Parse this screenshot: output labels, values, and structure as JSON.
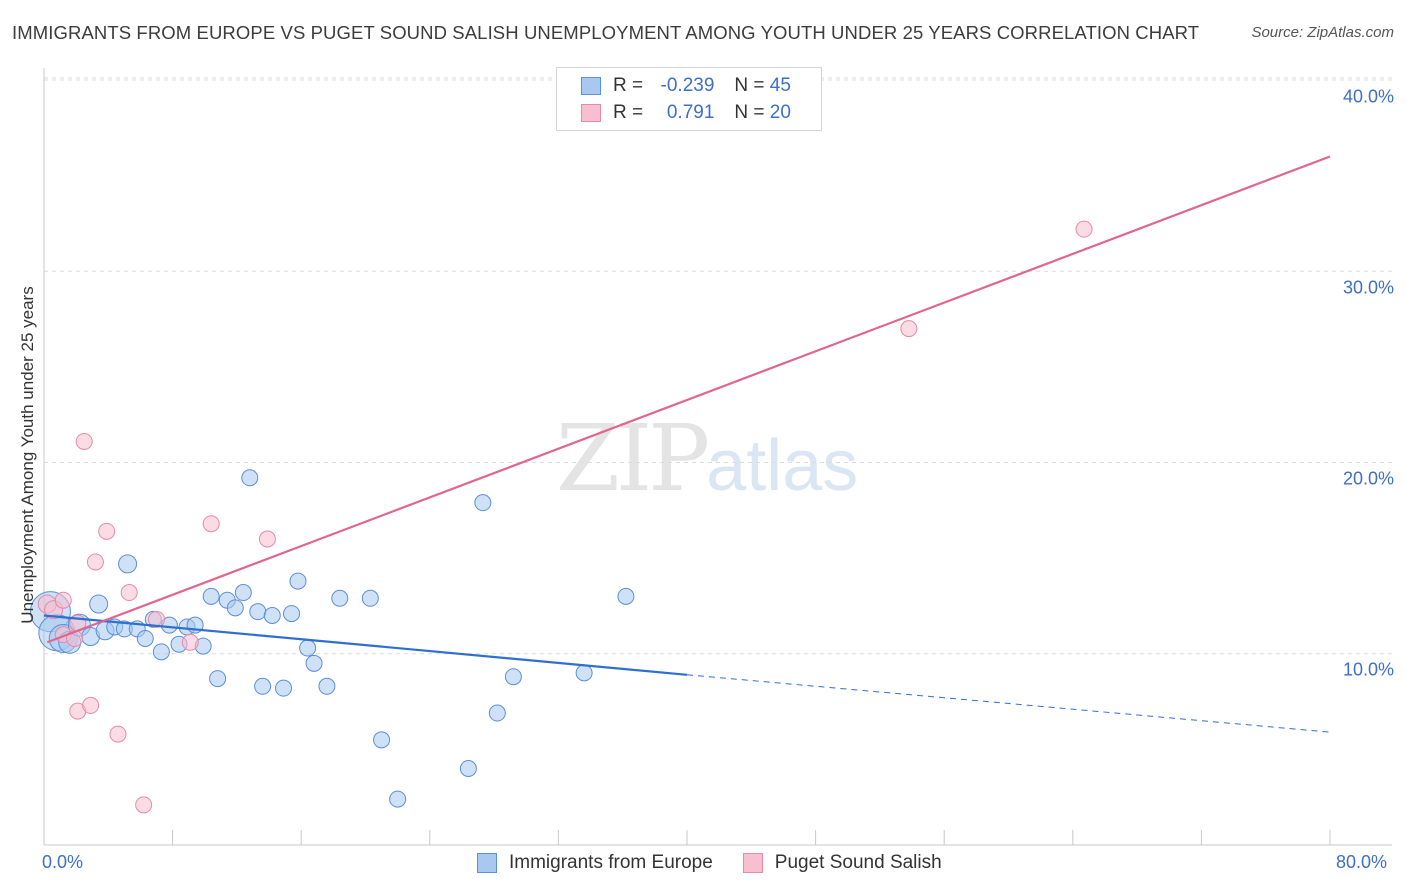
{
  "title": "IMMIGRANTS FROM EUROPE VS PUGET SOUND SALISH UNEMPLOYMENT AMONG YOUTH UNDER 25 YEARS CORRELATION CHART",
  "source": "Source: ZipAtlas.com",
  "watermark": {
    "zip": "ZIP",
    "atlas": "atlas"
  },
  "chart_data": {
    "type": "scatter",
    "title": "IMMIGRANTS FROM EUROPE VS PUGET SOUND SALISH UNEMPLOYMENT AMONG YOUTH UNDER 25 YEARS CORRELATION CHART",
    "xlabel": "",
    "ylabel": "Unemployment Among Youth under 25 years",
    "xlim": [
      0,
      80
    ],
    "ylim": [
      0,
      40
    ],
    "x_tick_labels": [
      "0.0%",
      "80.0%"
    ],
    "y_ticks": [
      10,
      20,
      30,
      40
    ],
    "y_tick_labels": [
      "10.0%",
      "20.0%",
      "30.0%",
      "40.0%"
    ],
    "grid": true,
    "legend": [
      {
        "name": "Immigrants from Europe",
        "r_label": "R =",
        "r": "-0.239",
        "n_label": "N =",
        "n": "45",
        "color": "#a8c8f0",
        "edge": "#5b8fd6"
      },
      {
        "name": "Puget Sound Salish",
        "r_label": "R =",
        "r": "0.791",
        "n_label": "N =",
        "n": "20",
        "color": "#f8bfd0",
        "edge": "#e889a8"
      }
    ],
    "series": [
      {
        "name": "Immigrants from Europe",
        "color": "#a8c8f0",
        "edge": "#5b8fd6",
        "line_color": "#2e6fd1",
        "trend": {
          "x0": 0,
          "y0": 12.0,
          "x1": 40,
          "y1": 8.9,
          "dash_to_x": 80,
          "dash_to_y": 5.9
        },
        "points": [
          {
            "x": 0.4,
            "y": 12.2,
            "s": 20
          },
          {
            "x": 0.8,
            "y": 11.1,
            "s": 18
          },
          {
            "x": 1.2,
            "y": 10.8,
            "s": 14
          },
          {
            "x": 1.6,
            "y": 10.6,
            "s": 11
          },
          {
            "x": 2.2,
            "y": 11.5,
            "s": 11
          },
          {
            "x": 2.9,
            "y": 10.9,
            "s": 9
          },
          {
            "x": 3.4,
            "y": 12.6,
            "s": 9
          },
          {
            "x": 3.8,
            "y": 11.2,
            "s": 9
          },
          {
            "x": 4.4,
            "y": 11.4,
            "s": 8
          },
          {
            "x": 5.0,
            "y": 11.3,
            "s": 8
          },
          {
            "x": 5.2,
            "y": 14.7,
            "s": 9
          },
          {
            "x": 5.8,
            "y": 11.3,
            "s": 8
          },
          {
            "x": 6.3,
            "y": 10.8,
            "s": 8
          },
          {
            "x": 6.8,
            "y": 11.8,
            "s": 8
          },
          {
            "x": 7.3,
            "y": 10.1,
            "s": 8
          },
          {
            "x": 7.8,
            "y": 11.5,
            "s": 8
          },
          {
            "x": 8.4,
            "y": 10.5,
            "s": 8
          },
          {
            "x": 8.9,
            "y": 11.4,
            "s": 8
          },
          {
            "x": 9.4,
            "y": 11.5,
            "s": 8
          },
          {
            "x": 9.9,
            "y": 10.4,
            "s": 8
          },
          {
            "x": 10.4,
            "y": 13.0,
            "s": 8
          },
          {
            "x": 10.8,
            "y": 8.7,
            "s": 8
          },
          {
            "x": 11.4,
            "y": 12.8,
            "s": 8
          },
          {
            "x": 11.9,
            "y": 12.4,
            "s": 8
          },
          {
            "x": 12.4,
            "y": 13.2,
            "s": 8
          },
          {
            "x": 12.8,
            "y": 19.2,
            "s": 8
          },
          {
            "x": 13.3,
            "y": 12.2,
            "s": 8
          },
          {
            "x": 13.6,
            "y": 8.3,
            "s": 8
          },
          {
            "x": 14.2,
            "y": 12.0,
            "s": 8
          },
          {
            "x": 14.9,
            "y": 8.2,
            "s": 8
          },
          {
            "x": 15.4,
            "y": 12.1,
            "s": 8
          },
          {
            "x": 15.8,
            "y": 13.8,
            "s": 8
          },
          {
            "x": 16.4,
            "y": 10.3,
            "s": 8
          },
          {
            "x": 16.8,
            "y": 9.5,
            "s": 8
          },
          {
            "x": 17.6,
            "y": 8.3,
            "s": 8
          },
          {
            "x": 18.4,
            "y": 12.9,
            "s": 8
          },
          {
            "x": 20.3,
            "y": 12.9,
            "s": 8
          },
          {
            "x": 21.0,
            "y": 5.5,
            "s": 8
          },
          {
            "x": 22.0,
            "y": 2.4,
            "s": 8
          },
          {
            "x": 26.4,
            "y": 4.0,
            "s": 8
          },
          {
            "x": 27.3,
            "y": 17.9,
            "s": 8
          },
          {
            "x": 28.2,
            "y": 6.9,
            "s": 8
          },
          {
            "x": 29.2,
            "y": 8.8,
            "s": 8
          },
          {
            "x": 33.6,
            "y": 9.0,
            "s": 8
          },
          {
            "x": 36.2,
            "y": 13.0,
            "s": 8
          }
        ]
      },
      {
        "name": "Puget Sound Salish",
        "color": "#f8bfd0",
        "edge": "#e889a8",
        "line_color": "#e0668f",
        "trend": {
          "x0": 0.2,
          "y0": 10.6,
          "x1": 80,
          "y1": 36.0
        },
        "points": [
          {
            "x": 0.2,
            "y": 12.6,
            "s": 9
          },
          {
            "x": 0.6,
            "y": 12.3,
            "s": 9
          },
          {
            "x": 1.2,
            "y": 11.0,
            "s": 8
          },
          {
            "x": 1.2,
            "y": 12.8,
            "s": 8
          },
          {
            "x": 1.9,
            "y": 10.8,
            "s": 8
          },
          {
            "x": 2.1,
            "y": 11.6,
            "s": 8
          },
          {
            "x": 2.1,
            "y": 7.0,
            "s": 8
          },
          {
            "x": 2.5,
            "y": 21.1,
            "s": 8
          },
          {
            "x": 2.9,
            "y": 7.3,
            "s": 8
          },
          {
            "x": 3.2,
            "y": 14.8,
            "s": 8
          },
          {
            "x": 3.9,
            "y": 16.4,
            "s": 8
          },
          {
            "x": 4.6,
            "y": 5.8,
            "s": 8
          },
          {
            "x": 5.3,
            "y": 13.2,
            "s": 8
          },
          {
            "x": 6.2,
            "y": 2.1,
            "s": 8
          },
          {
            "x": 7.0,
            "y": 11.8,
            "s": 8
          },
          {
            "x": 9.1,
            "y": 10.6,
            "s": 8
          },
          {
            "x": 10.4,
            "y": 16.8,
            "s": 8
          },
          {
            "x": 13.9,
            "y": 16.0,
            "s": 8
          },
          {
            "x": 53.8,
            "y": 27.0,
            "s": 8
          },
          {
            "x": 64.7,
            "y": 32.2,
            "s": 8
          }
        ]
      }
    ]
  }
}
